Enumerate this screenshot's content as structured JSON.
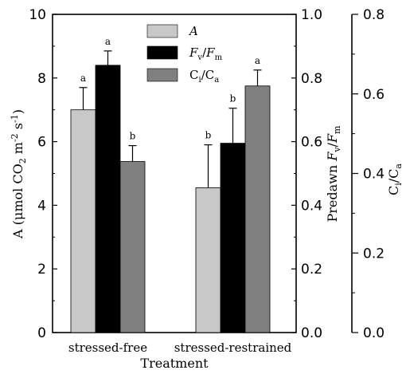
{
  "chart_data": {
    "type": "bar",
    "xlabel": "Treatment",
    "categories": [
      "stressed-free",
      "stressed-restrained"
    ],
    "axes": {
      "left": {
        "label": "A (μmol CO2 m-2 s-1)",
        "range": [
          0,
          10
        ],
        "ticks": [
          "0",
          "2",
          "4",
          "6",
          "8",
          "10"
        ]
      },
      "right1": {
        "label": "Predawn Fv/Fm",
        "range": [
          0,
          1.0
        ],
        "ticks": [
          "0.0",
          "0.2",
          "0.4",
          "0.6",
          "0.8",
          "1.0"
        ]
      },
      "right2": {
        "label": "Ci/Ca",
        "range": [
          0,
          0.8
        ],
        "ticks": [
          "0.0",
          "0.2",
          "0.4",
          "0.6",
          "0.8"
        ]
      }
    },
    "series": [
      {
        "name": "A",
        "axis": "left",
        "color": "#c8c8c8",
        "values": [
          7.0,
          4.55
        ],
        "errors": [
          0.7,
          1.35
        ],
        "letters": [
          "a",
          "b"
        ]
      },
      {
        "name": "Fv/Fm",
        "axis": "right1",
        "color": "#000000",
        "values": [
          0.84,
          0.595
        ],
        "errors": [
          0.045,
          0.11
        ],
        "letters": [
          "a",
          "b"
        ]
      },
      {
        "name": "Ci/Ca",
        "axis": "right2",
        "color": "#808080",
        "values": [
          0.43,
          0.62
        ],
        "errors": [
          0.04,
          0.04
        ],
        "letters": [
          "b",
          "a"
        ]
      }
    ],
    "legend_position": "top-center"
  }
}
